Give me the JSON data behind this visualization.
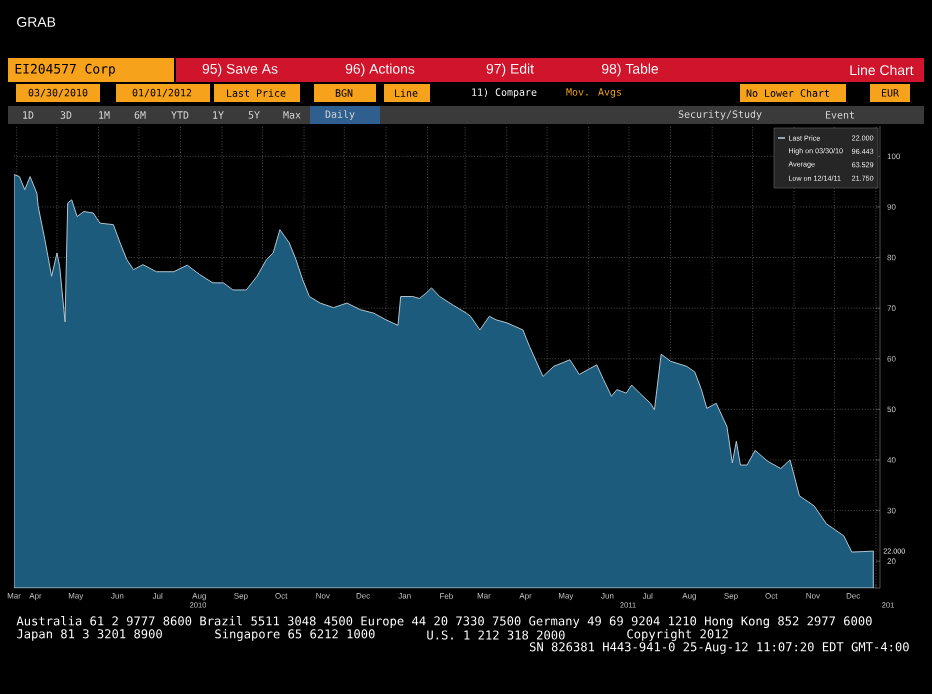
{
  "chart_data": {
    "type": "area",
    "title": "EI204577 Corp",
    "x": [
      "2010-03-30",
      "2010-04-03",
      "2010-04-07",
      "2010-04-11",
      "2010-04-16",
      "2010-04-17",
      "2010-04-22",
      "2010-04-27",
      "2010-05-01",
      "2010-05-03",
      "2010-05-07",
      "2010-05-09",
      "2010-05-12",
      "2010-05-16",
      "2010-05-21",
      "2010-05-28",
      "2010-06-02",
      "2010-06-12",
      "2010-06-17",
      "2010-06-22",
      "2010-06-27",
      "2010-07-04",
      "2010-07-14",
      "2010-07-27",
      "2010-08-06",
      "2010-08-15",
      "2010-08-25",
      "2010-09-02",
      "2010-09-09",
      "2010-09-19",
      "2010-09-27",
      "2010-10-04",
      "2010-10-09",
      "2010-10-14",
      "2010-10-21",
      "2010-10-26",
      "2010-10-31",
      "2010-11-05",
      "2010-11-13",
      "2010-11-23",
      "2010-12-03",
      "2010-12-13",
      "2010-12-23",
      "2011-01-01",
      "2011-01-10",
      "2011-01-12",
      "2011-01-21",
      "2011-01-26",
      "2011-01-31",
      "2011-02-04",
      "2011-02-10",
      "2011-02-20",
      "2011-03-02",
      "2011-03-05",
      "2011-03-12",
      "2011-03-19",
      "2011-03-24",
      "2011-04-01",
      "2011-04-13",
      "2011-04-18",
      "2011-04-28",
      "2011-05-06",
      "2011-05-18",
      "2011-05-25",
      "2011-06-07",
      "2011-06-12",
      "2011-06-18",
      "2011-06-22",
      "2011-06-29",
      "2011-07-03",
      "2011-07-09",
      "2011-07-17",
      "2011-07-20",
      "2011-07-25",
      "2011-08-01",
      "2011-08-13",
      "2011-08-19",
      "2011-08-24",
      "2011-08-28",
      "2011-09-04",
      "2011-09-12",
      "2011-09-16",
      "2011-09-19",
      "2011-09-22",
      "2011-09-27",
      "2011-10-03",
      "2011-10-12",
      "2011-10-22",
      "2011-10-29",
      "2011-11-05",
      "2011-11-16",
      "2011-11-25",
      "2011-12-08",
      "2011-12-14",
      "2011-12-23",
      "2011-12-30"
    ],
    "series": [
      {
        "name": "Last Price",
        "color": "#1d5b7d",
        "values": [
          96.4,
          96.0,
          93.4,
          96.0,
          92.7,
          90.1,
          83.5,
          76.3,
          80.9,
          78.2,
          67.3,
          90.8,
          91.4,
          88.1,
          89.1,
          88.8,
          86.8,
          86.5,
          82.9,
          79.6,
          77.6,
          78.6,
          77.2,
          77.2,
          78.5,
          76.7,
          75.0,
          75.0,
          73.6,
          73.6,
          76.3,
          79.6,
          80.9,
          85.5,
          82.9,
          79.6,
          75.6,
          72.3,
          71.0,
          70.1,
          71.0,
          69.7,
          69.0,
          67.7,
          66.6,
          72.3,
          72.3,
          71.9,
          73.0,
          74.0,
          72.3,
          70.6,
          69.0,
          68.4,
          65.7,
          68.4,
          67.7,
          67.1,
          65.7,
          62.4,
          56.5,
          58.5,
          59.8,
          56.9,
          58.8,
          55.9,
          52.6,
          53.9,
          53.2,
          54.8,
          53.2,
          51.2,
          49.9,
          60.9,
          59.5,
          58.5,
          57.4,
          53.9,
          50.2,
          51.2,
          46.6,
          39.4,
          43.7,
          39.0,
          39.0,
          41.9,
          39.8,
          38.3,
          40.0,
          32.9,
          30.9,
          27.4,
          25.0,
          21.8,
          21.9,
          22.0
        ]
      }
    ],
    "xlim": [
      "2010-03-30",
      "2012-01-04"
    ],
    "xticks": [
      {
        "value": "2010-03-30",
        "label": "Mar"
      },
      {
        "value": "2010-04-01",
        "label": null
      },
      {
        "value": "2010-04-15",
        "label": "Apr"
      },
      {
        "value": "2010-05-01",
        "label": null
      },
      {
        "value": "2010-05-15",
        "label": "May"
      },
      {
        "value": "2010-06-01",
        "label": null
      },
      {
        "value": "2010-06-15",
        "label": "Jun"
      },
      {
        "value": "2010-07-01",
        "label": null
      },
      {
        "value": "2010-07-15",
        "label": "Jul"
      },
      {
        "value": "2010-08-01",
        "label": null
      },
      {
        "value": "2010-08-15",
        "label": "Aug"
      },
      {
        "value": "2010-09-01",
        "label": null
      },
      {
        "value": "2010-09-15",
        "label": "Sep"
      },
      {
        "value": "2010-10-01",
        "label": null
      },
      {
        "value": "2010-10-15",
        "label": "Oct"
      },
      {
        "value": "2010-11-01",
        "label": null
      },
      {
        "value": "2010-11-15",
        "label": "Nov"
      },
      {
        "value": "2010-12-01",
        "label": null
      },
      {
        "value": "2010-12-15",
        "label": "Dec"
      },
      {
        "value": "2011-01-01",
        "label": null
      },
      {
        "value": "2011-01-15",
        "label": "Jan"
      },
      {
        "value": "2011-02-01",
        "label": null
      },
      {
        "value": "2011-02-15",
        "label": "Feb"
      },
      {
        "value": "2011-03-01",
        "label": null
      },
      {
        "value": "2011-03-15",
        "label": "Mar"
      },
      {
        "value": "2011-04-01",
        "label": null
      },
      {
        "value": "2011-04-15",
        "label": "Apr"
      },
      {
        "value": "2011-05-01",
        "label": null
      },
      {
        "value": "2011-05-15",
        "label": "May"
      },
      {
        "value": "2011-06-01",
        "label": null
      },
      {
        "value": "2011-06-15",
        "label": "Jun"
      },
      {
        "value": "2011-07-01",
        "label": null
      },
      {
        "value": "2011-07-15",
        "label": "Jul"
      },
      {
        "value": "2011-08-01",
        "label": null
      },
      {
        "value": "2011-08-15",
        "label": "Aug"
      },
      {
        "value": "2011-09-01",
        "label": null
      },
      {
        "value": "2011-09-15",
        "label": "Sep"
      },
      {
        "value": "2011-10-01",
        "label": null
      },
      {
        "value": "2011-10-15",
        "label": "Oct"
      },
      {
        "value": "2011-11-01",
        "label": null
      },
      {
        "value": "2011-11-15",
        "label": "Nov"
      },
      {
        "value": "2011-12-01",
        "label": null
      },
      {
        "value": "2011-12-15",
        "label": "Dec"
      },
      {
        "value": "2012-01-01",
        "label": null
      }
    ],
    "ylim": [
      14.7,
      106
    ],
    "yticks": [
      20,
      30,
      40,
      50,
      60,
      70,
      80,
      90,
      100
    ],
    "grid": true,
    "legend": "top right",
    "annotations": [
      "GRAB",
      "95) Save As",
      "96) Actions",
      "97) Edit",
      "98) Table",
      "Line Chart",
      "03/30/2010",
      "01/01/2012",
      "Last Price",
      "BGN",
      "Line",
      "11) Compare",
      "Mov. Avgs",
      "No Lower Chart",
      "EUR",
      "1D",
      "3D",
      "1M",
      "6M",
      "YTD",
      "1Y",
      "5Y",
      "Max",
      "Daily",
      "Security/Study",
      "Event",
      "High on 03/30/10",
      "96.443",
      "Average",
      "63.529",
      "Low on 12/14/11",
      "21.750",
      "22.000",
      {
        "text": "22.000",
        "x": "2011-12-30",
        "y": 22
      },
      "2010",
      "2011",
      "201",
      "Australia 61 2 9777 8600 Brazil 5511 3048 4500 Europe 44 20 7330 7500 Germany 49 69 9204 1210 Hong Kong 852 2977 6000",
      "Japan 81 3 3201 8900",
      "Singapore 65 6212 1000",
      "U.S. 1 212 318 2000",
      "Copyright 2012",
      "SN 826381 H443-941-0 25-Aug-12 11:07:20 EDT  GMT-4:00"
    ]
  }
}
